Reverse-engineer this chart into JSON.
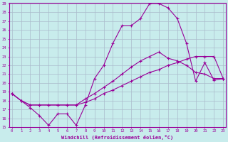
{
  "xlabel": "Windchill (Refroidissement éolien,°C)",
  "background_color": "#c8ecec",
  "line_color": "#990099",
  "grid_color": "#aabbcc",
  "xmin": 0,
  "xmax": 23,
  "ymin": 15,
  "ymax": 29,
  "line1_x": [
    0,
    1,
    2,
    3,
    4,
    5,
    6,
    7,
    8,
    9,
    10,
    11,
    12,
    13,
    14,
    15,
    16,
    17,
    18,
    19,
    20,
    21,
    22,
    23
  ],
  "line1_y": [
    18.8,
    18.0,
    17.2,
    16.3,
    15.2,
    16.5,
    16.5,
    15.2,
    17.5,
    20.5,
    22.0,
    24.5,
    26.5,
    26.5,
    27.3,
    29.0,
    29.0,
    28.5,
    27.3,
    24.5,
    20.2,
    22.3,
    20.3,
    20.5
  ],
  "line2_x": [
    0,
    1,
    2,
    3,
    4,
    5,
    6,
    7,
    8,
    9,
    10,
    11,
    12,
    13,
    14,
    15,
    16,
    17,
    18,
    19,
    20,
    21,
    22,
    23
  ],
  "line2_y": [
    18.8,
    18.0,
    17.5,
    17.5,
    17.5,
    17.5,
    17.5,
    17.5,
    18.2,
    18.8,
    19.5,
    20.2,
    21.0,
    21.8,
    22.5,
    23.0,
    23.5,
    22.8,
    22.5,
    22.0,
    21.2,
    21.0,
    20.5,
    20.5
  ],
  "line3_x": [
    0,
    1,
    2,
    3,
    4,
    5,
    6,
    7,
    8,
    9,
    10,
    11,
    12,
    13,
    14,
    15,
    16,
    17,
    18,
    19,
    20,
    21,
    22,
    23
  ],
  "line3_y": [
    18.8,
    18.0,
    17.5,
    17.5,
    17.5,
    17.5,
    17.5,
    17.5,
    17.8,
    18.2,
    18.8,
    19.2,
    19.7,
    20.2,
    20.7,
    21.2,
    21.5,
    22.0,
    22.3,
    22.7,
    23.0,
    23.0,
    23.0,
    20.5
  ]
}
